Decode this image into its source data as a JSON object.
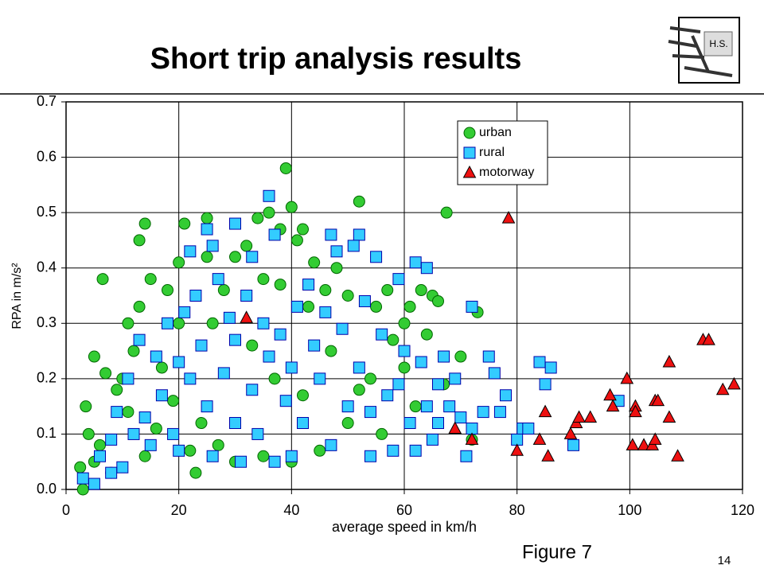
{
  "slide": {
    "title": "Short trip analysis results",
    "logo_text": "H.S.",
    "figure_label": "Figure 7",
    "page_number": "14"
  },
  "chart_data": {
    "type": "scatter",
    "xlabel": "average speed in km/h",
    "ylabel": "RPA in m/s²",
    "xlim": [
      0,
      120
    ],
    "ylim": [
      0,
      0.7
    ],
    "xticks": [
      0,
      20,
      40,
      60,
      80,
      100,
      120
    ],
    "yticks": [
      {
        "value": 0,
        "label": "0.0"
      },
      0.1,
      0.2,
      0.3,
      0.4,
      0.5,
      0.6,
      0.7
    ],
    "grid": true,
    "legend": "upper right",
    "series": [
      {
        "name": "urban",
        "color": "#33cc33",
        "marker": "circle",
        "x": [
          39,
          40,
          52,
          67.5,
          6.5,
          3,
          21,
          25,
          14,
          13,
          34,
          36,
          38,
          42,
          73,
          70,
          72,
          5,
          2.5,
          4,
          3.5,
          8,
          23,
          10,
          12,
          15,
          18,
          20,
          16,
          14,
          22,
          25,
          28,
          30,
          32,
          35,
          38,
          41,
          44,
          46,
          43,
          48,
          50,
          55,
          57,
          60,
          61,
          63,
          65,
          66,
          60,
          62,
          64,
          58,
          54,
          50,
          45,
          40,
          35,
          30,
          27,
          24,
          19,
          17,
          11,
          9,
          7,
          6,
          5,
          11,
          13,
          20,
          26,
          33,
          37,
          42,
          47,
          52,
          56,
          67
        ],
        "values": [
          0.58,
          0.51,
          0.52,
          0.5,
          0.38,
          0,
          0.48,
          0.49,
          0.48,
          0.45,
          0.49,
          0.5,
          0.47,
          0.47,
          0.32,
          0.24,
          0.09,
          0.24,
          0.04,
          0.1,
          0.15,
          0.03,
          0.03,
          0.2,
          0.25,
          0.38,
          0.36,
          0.3,
          0.11,
          0.06,
          0.07,
          0.42,
          0.36,
          0.42,
          0.44,
          0.38,
          0.37,
          0.45,
          0.41,
          0.36,
          0.33,
          0.4,
          0.35,
          0.33,
          0.36,
          0.3,
          0.33,
          0.36,
          0.35,
          0.34,
          0.22,
          0.15,
          0.28,
          0.27,
          0.2,
          0.12,
          0.07,
          0.05,
          0.06,
          0.05,
          0.08,
          0.12,
          0.16,
          0.22,
          0.14,
          0.18,
          0.21,
          0.08,
          0.05,
          0.3,
          0.33,
          0.41,
          0.3,
          0.26,
          0.2,
          0.17,
          0.25,
          0.18,
          0.1,
          0.19
        ]
      },
      {
        "name": "rural",
        "color": "#33ccff",
        "marker": "square",
        "x": [
          36,
          30,
          25,
          22,
          26,
          33,
          37,
          47,
          52,
          51,
          48,
          55,
          59,
          62,
          64,
          72,
          67,
          75,
          76,
          78,
          81,
          84,
          86,
          85,
          80,
          82,
          90,
          98,
          77,
          74,
          71,
          65,
          62,
          58,
          54,
          47,
          40,
          37,
          31,
          26,
          20,
          15,
          10,
          8,
          5,
          3,
          6,
          9,
          11,
          13,
          16,
          18,
          21,
          23,
          27,
          29,
          32,
          35,
          38,
          41,
          43,
          46,
          49,
          53,
          56,
          60,
          63,
          66,
          68,
          70,
          72,
          69,
          64,
          61,
          57,
          52,
          50,
          45,
          42,
          39,
          36,
          33,
          30,
          28,
          25,
          22,
          19,
          17,
          14,
          12,
          8,
          24,
          34,
          44,
          54,
          59,
          66,
          20,
          30,
          40
        ],
        "values": [
          0.53,
          0.48,
          0.47,
          0.43,
          0.44,
          0.42,
          0.46,
          0.46,
          0.46,
          0.44,
          0.43,
          0.42,
          0.38,
          0.41,
          0.4,
          0.33,
          0.24,
          0.24,
          0.21,
          0.17,
          0.11,
          0.23,
          0.22,
          0.19,
          0.09,
          0.11,
          0.08,
          0.16,
          0.14,
          0.14,
          0.06,
          0.09,
          0.07,
          0.07,
          0.06,
          0.08,
          0.06,
          0.05,
          0.05,
          0.06,
          0.07,
          0.08,
          0.04,
          0.03,
          0.01,
          0.02,
          0.06,
          0.14,
          0.2,
          0.27,
          0.24,
          0.3,
          0.32,
          0.35,
          0.38,
          0.31,
          0.35,
          0.3,
          0.28,
          0.33,
          0.37,
          0.32,
          0.29,
          0.34,
          0.28,
          0.25,
          0.23,
          0.19,
          0.15,
          0.13,
          0.11,
          0.2,
          0.15,
          0.12,
          0.17,
          0.22,
          0.15,
          0.2,
          0.12,
          0.16,
          0.24,
          0.18,
          0.12,
          0.21,
          0.15,
          0.2,
          0.1,
          0.17,
          0.13,
          0.1,
          0.09,
          0.26,
          0.1,
          0.26,
          0.14,
          0.19,
          0.12,
          0.23,
          0.27,
          0.22
        ]
      },
      {
        "name": "motorway",
        "color": "#ee1111",
        "marker": "triangle",
        "x": [
          78.5,
          32,
          69,
          72,
          80,
          84,
          85,
          85.5,
          89.5,
          90.5,
          91,
          93,
          96.5,
          97,
          99.5,
          100.5,
          101,
          101,
          102.5,
          104,
          104.5,
          105,
          104.5,
          107,
          107,
          108.5,
          113,
          114,
          116.5,
          118.5
        ],
        "values": [
          0.49,
          0.31,
          0.11,
          0.09,
          0.07,
          0.09,
          0.14,
          0.06,
          0.1,
          0.12,
          0.13,
          0.13,
          0.17,
          0.15,
          0.2,
          0.08,
          0.15,
          0.14,
          0.08,
          0.08,
          0.16,
          0.16,
          0.09,
          0.23,
          0.13,
          0.06,
          0.27,
          0.27,
          0.18,
          0.19
        ]
      }
    ]
  }
}
